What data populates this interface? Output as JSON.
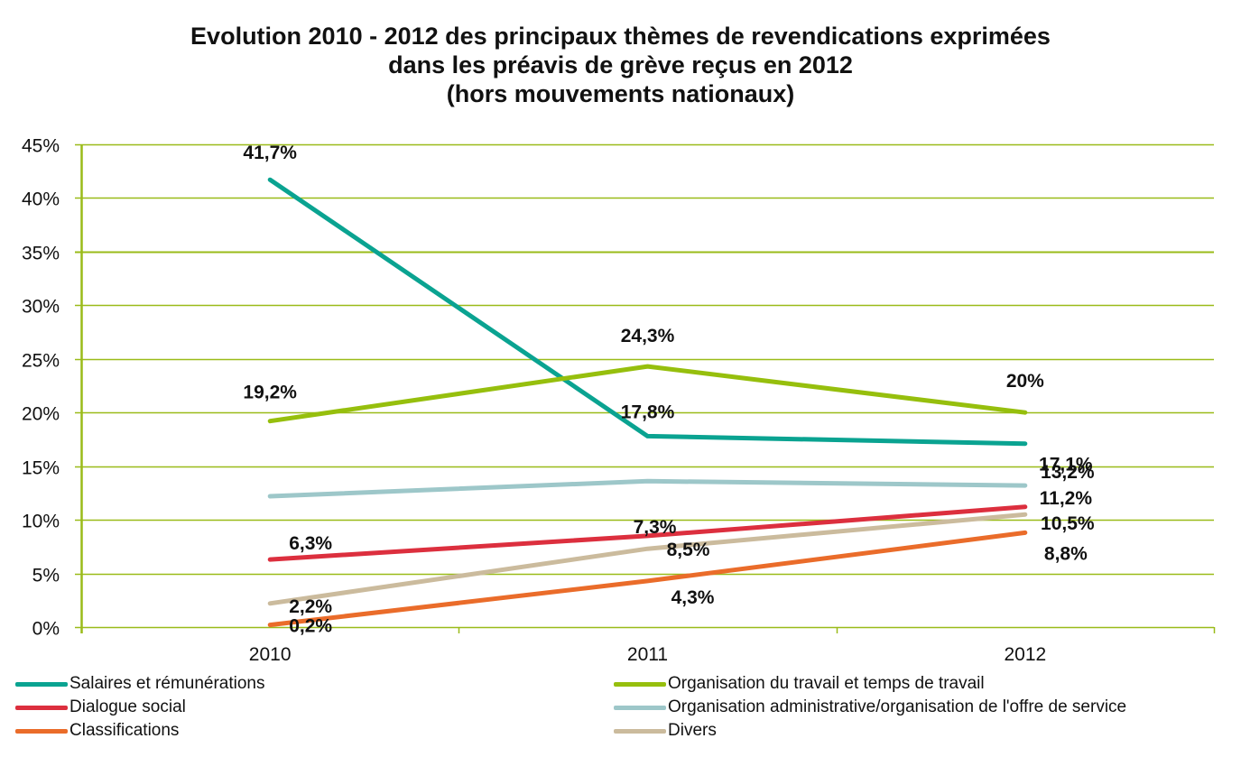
{
  "chart_data": {
    "type": "line",
    "title": [
      "Evolution 2010 - 2012 des principaux thèmes de revendications exprimées",
      "dans les préavis de grève reçus en 2012",
      "(hors mouvements nationaux)"
    ],
    "xlabel": "",
    "ylabel": "",
    "categories": [
      "2010",
      "2011",
      "2012"
    ],
    "ylim": [
      0,
      45
    ],
    "yticks": [
      0,
      5,
      10,
      15,
      20,
      25,
      30,
      35,
      40,
      45
    ],
    "ytick_labels": [
      "0%",
      "5%",
      "10%",
      "15%",
      "20%",
      "25%",
      "30%",
      "35%",
      "40%",
      "45%"
    ],
    "grid": true,
    "legend_position": "bottom",
    "series": [
      {
        "name": "Salaires et rémunérations",
        "color": "#0aa391",
        "values": [
          41.7,
          17.8,
          17.1
        ],
        "labels": [
          "41,7%",
          "17,8%",
          "17,1%"
        ]
      },
      {
        "name": "Organisation du travail et temps de travail",
        "color": "#96bf0d",
        "values": [
          19.2,
          24.3,
          20.0
        ],
        "labels": [
          "19,2%",
          "24,3%",
          "20%"
        ]
      },
      {
        "name": "Dialogue social",
        "color": "#dc2f3e",
        "values": [
          6.3,
          8.5,
          11.2
        ],
        "labels": [
          "6,3%",
          "8,5%",
          "11,2%"
        ]
      },
      {
        "name": "Organisation administrative/organisation de l'offre de service",
        "color": "#9dc7c9",
        "values": [
          12.2,
          13.6,
          13.2
        ],
        "labels": [
          "",
          "",
          "13,2%"
        ]
      },
      {
        "name": "Classifications",
        "color": "#ea6c2a",
        "values": [
          0.2,
          4.3,
          8.8
        ],
        "labels": [
          "0,2%",
          "4,3%",
          "8,8%"
        ]
      },
      {
        "name": "Divers",
        "color": "#cbbb9d",
        "values": [
          2.2,
          7.3,
          10.5
        ],
        "labels": [
          "2,2%",
          "7,3%",
          "10,5%"
        ]
      }
    ],
    "grid_color": "#9abb19"
  }
}
